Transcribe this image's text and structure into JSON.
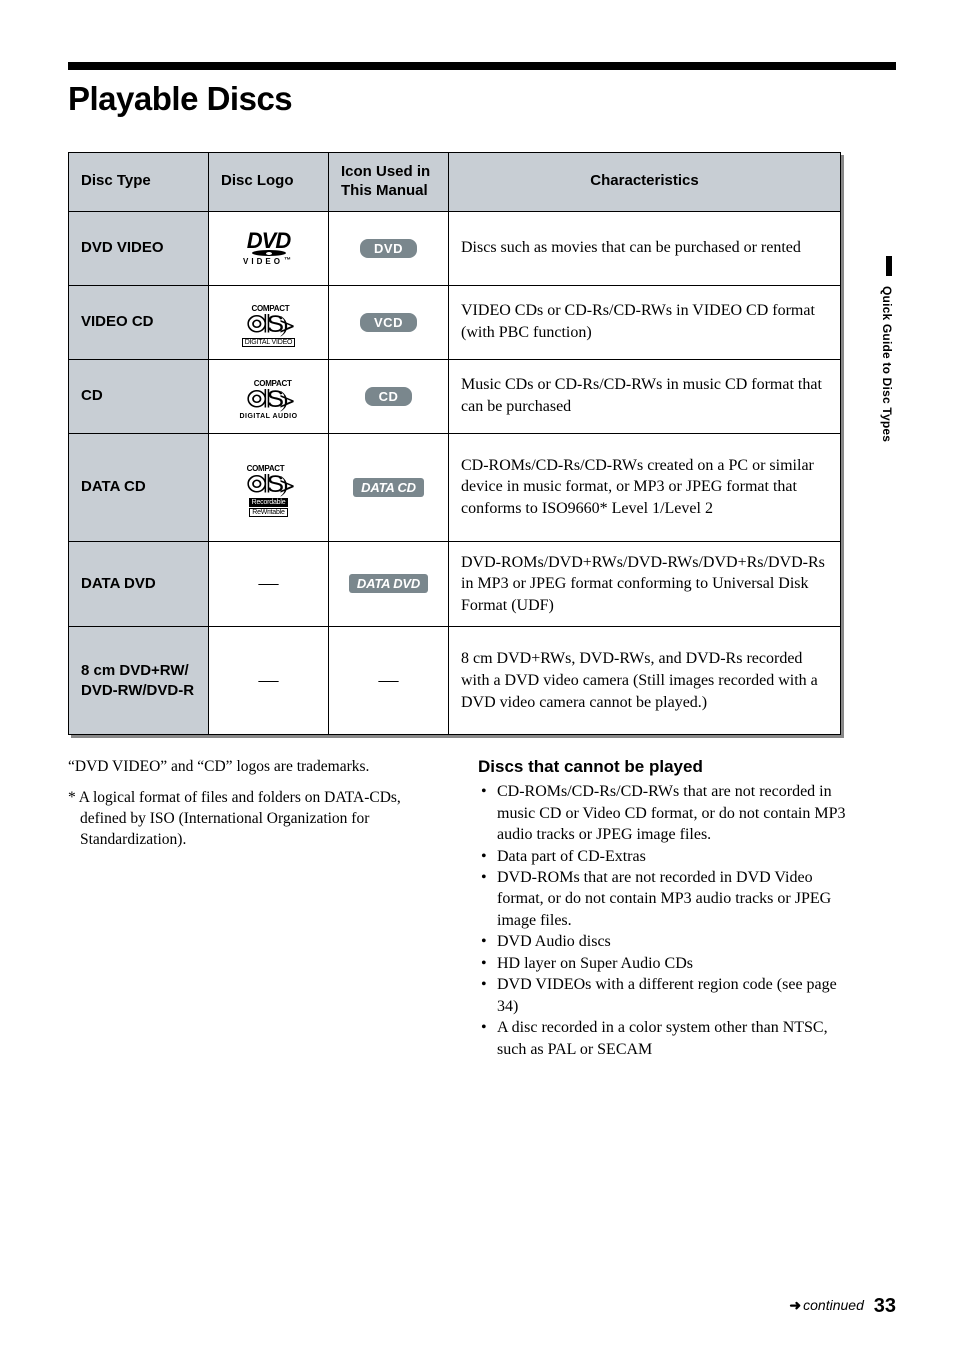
{
  "page": {
    "title": "Playable Discs",
    "side_tab": "Quick Guide to Disc Types",
    "continued": "continued",
    "page_number": "33"
  },
  "table": {
    "headers": {
      "type": "Disc Type",
      "logo": "Disc Logo",
      "icon": "Icon Used in This Manual",
      "char": "Characteristics"
    },
    "rows": [
      {
        "type": "DVD VIDEO",
        "logo_kind": "dvd",
        "logo_sub": "VIDEO",
        "icon_label": "DVD",
        "icon_style": "badge",
        "char": "Discs such as movies that can be purchased or rented"
      },
      {
        "type": "VIDEO CD",
        "logo_kind": "cd",
        "logo_sub_box": "DIGITAL VIDEO",
        "icon_label": "VCD",
        "icon_style": "badge",
        "char": "VIDEO CDs or CD-Rs/CD-RWs in VIDEO CD format (with PBC function)"
      },
      {
        "type": "CD",
        "logo_kind": "cd",
        "logo_sub_plain": "DIGITAL AUDIO",
        "icon_label": "CD",
        "icon_style": "badge",
        "char": "Music CDs or CD-Rs/CD-RWs in music CD format that can be purchased"
      },
      {
        "type": "DATA CD",
        "logo_kind": "cd",
        "logo_sub_filled": "Recordable",
        "logo_sub_box2": "ReWritable",
        "icon_label": "DATA CD",
        "icon_style": "badge-data",
        "char": "CD-ROMs/CD-Rs/CD-RWs created on a PC or similar device in music format, or MP3 or JPEG format that conforms to ISO9660* Level 1/Level 2"
      },
      {
        "type": "DATA DVD",
        "logo_kind": "dash",
        "icon_label": "DATA DVD",
        "icon_style": "badge-data",
        "char": "DVD-ROMs/DVD+RWs/DVD-RWs/DVD+Rs/DVD-Rs in MP3 or JPEG format conforming to Universal Disk Format (UDF)"
      },
      {
        "type": "8 cm DVD+RW/\nDVD-RW/DVD-R",
        "logo_kind": "dash",
        "icon_label": "—",
        "icon_style": "dash",
        "char": "8 cm DVD+RWs, DVD-RWs, and DVD-Rs recorded with a DVD video camera (Still images recorded with a DVD video camera cannot be played.)"
      }
    ]
  },
  "notes": {
    "trademark": "“DVD VIDEO” and “CD” logos are trademarks.",
    "footnote": "* A logical format of files and folders on DATA-CDs, defined by ISO (International Organization for Standardization)."
  },
  "cannot": {
    "heading": "Discs that cannot be played",
    "items": [
      "CD-ROMs/CD-Rs/CD-RWs that are not recorded in music CD or Video CD format, or do not contain MP3 audio tracks or JPEG image files.",
      "Data part of CD-Extras",
      "DVD-ROMs that are not recorded in DVD Video format, or do not contain MP3 audio tracks or JPEG image files.",
      "DVD Audio discs",
      "HD layer on Super Audio CDs",
      "DVD VIDEOs with a different region code (see page 34)",
      "A disc recorded in a color system other than NTSC, such as PAL or SECAM"
    ]
  },
  "style": {
    "header_bg": "#c8ced4",
    "badge_bg": "#7a878d",
    "shadow": "#888888"
  }
}
